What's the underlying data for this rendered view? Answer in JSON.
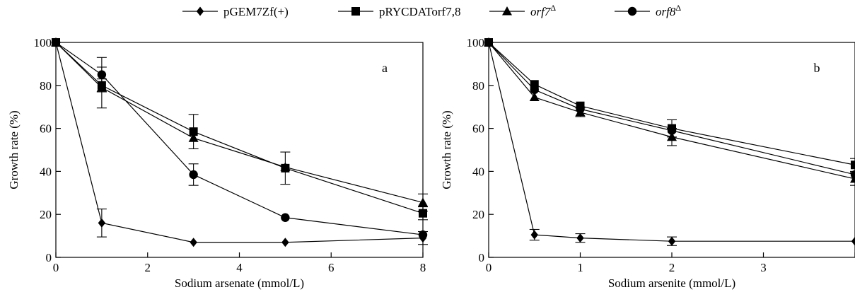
{
  "legend": {
    "placement": "top-center",
    "entries": [
      {
        "label": "pGEM7Zf(+)",
        "marker": "diamond",
        "italic": false,
        "sup": ""
      },
      {
        "label": "pRYCDATorf7,8",
        "marker": "square",
        "italic": false,
        "sup": ""
      },
      {
        "label": "orf7",
        "marker": "triangle",
        "italic": true,
        "sup": "Δ"
      },
      {
        "label": "orf8",
        "marker": "circle",
        "italic": true,
        "sup": "Δ"
      }
    ]
  },
  "chart_data": [
    {
      "type": "line",
      "panel_label": "a",
      "xlabel": "Sodium arsenate (mmol/L)",
      "ylabel": "Growth rate (%)",
      "xlim": [
        0,
        8
      ],
      "ylim": [
        0,
        100
      ],
      "xticks": [
        0,
        2,
        4,
        6,
        8
      ],
      "yticks": [
        0,
        20,
        40,
        60,
        80,
        100
      ],
      "x": [
        0,
        1,
        3,
        5,
        8
      ],
      "grid": false,
      "series": [
        {
          "name": "pGEM7Zf(+)",
          "marker": "diamond",
          "values": [
            100,
            16,
            7,
            7,
            9
          ],
          "errors": [
            0,
            6.5,
            0,
            0,
            3
          ]
        },
        {
          "name": "pRYCDATorf7,8",
          "marker": "square",
          "values": [
            100,
            80,
            58.5,
            41.5,
            20.5
          ],
          "errors": [
            0,
            3,
            8,
            7.5,
            3
          ]
        },
        {
          "name": "orf7Δ",
          "marker": "triangle",
          "values": [
            100,
            79,
            55.5,
            42,
            25.5
          ],
          "errors": [
            0,
            9.5,
            0,
            0,
            4
          ]
        },
        {
          "name": "orf8Δ",
          "marker": "circle",
          "values": [
            100,
            85,
            38.5,
            18.5,
            10.5
          ],
          "errors": [
            0,
            8,
            5,
            0,
            0
          ]
        }
      ]
    },
    {
      "type": "line",
      "panel_label": "b",
      "xlabel": "Sodium arsenite (mmol/L)",
      "ylabel": "Growth rate (%)",
      "xlim": [
        0,
        4
      ],
      "ylim": [
        0,
        100
      ],
      "xticks": [
        0,
        1,
        2,
        3,
        4
      ],
      "xtick_labels": [
        "0",
        "1",
        "2",
        "3",
        ""
      ],
      "yticks": [
        0,
        20,
        40,
        60,
        80,
        100
      ],
      "x": [
        0,
        0.5,
        1,
        2,
        4
      ],
      "grid": false,
      "series": [
        {
          "name": "pGEM7Zf(+)",
          "marker": "diamond",
          "values": [
            100,
            10.5,
            9,
            7.5,
            7.5
          ],
          "errors": [
            0,
            2.5,
            2,
            2,
            0
          ]
        },
        {
          "name": "pRYCDATorf7,8",
          "marker": "square",
          "values": [
            100,
            80.5,
            70.5,
            60,
            43
          ],
          "errors": [
            0,
            0,
            0,
            4,
            3
          ]
        },
        {
          "name": "orf7Δ",
          "marker": "triangle",
          "values": [
            100,
            74.5,
            67.5,
            56,
            36.5
          ],
          "errors": [
            0,
            0,
            2,
            4,
            3
          ]
        },
        {
          "name": "orf8Δ",
          "marker": "circle",
          "values": [
            100,
            78,
            69,
            59,
            38.5
          ],
          "errors": [
            0,
            0,
            0,
            0,
            0
          ]
        }
      ]
    }
  ]
}
